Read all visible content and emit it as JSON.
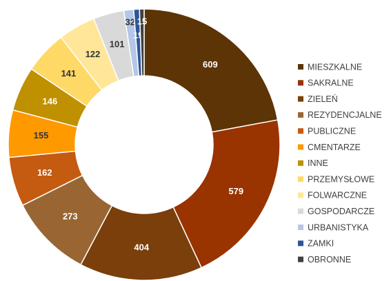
{
  "chart_data": {
    "type": "donut",
    "categories": [
      "MIESZKALNE",
      "SAKRALNE",
      "ZIELEŃ",
      "REZYDENCJALNE",
      "PUBLICZNE",
      "CMENTARZE",
      "INNE",
      "PRZEMYSŁOWE",
      "FOLWARCZNE",
      "GOSPODARCZE",
      "URBANISTYKA",
      "ZAMKI",
      "OBRONNE"
    ],
    "values": [
      609,
      579,
      404,
      273,
      162,
      155,
      146,
      141,
      122,
      101,
      32,
      19,
      15
    ],
    "colors": [
      "#5c3406",
      "#993300",
      "#7a3f0a",
      "#996633",
      "#c55a11",
      "#ff9900",
      "#bf9000",
      "#ffd966",
      "#ffe699",
      "#d9d9d9",
      "#b4c7e7",
      "#2f5597",
      "#404040"
    ],
    "legend": "right"
  }
}
